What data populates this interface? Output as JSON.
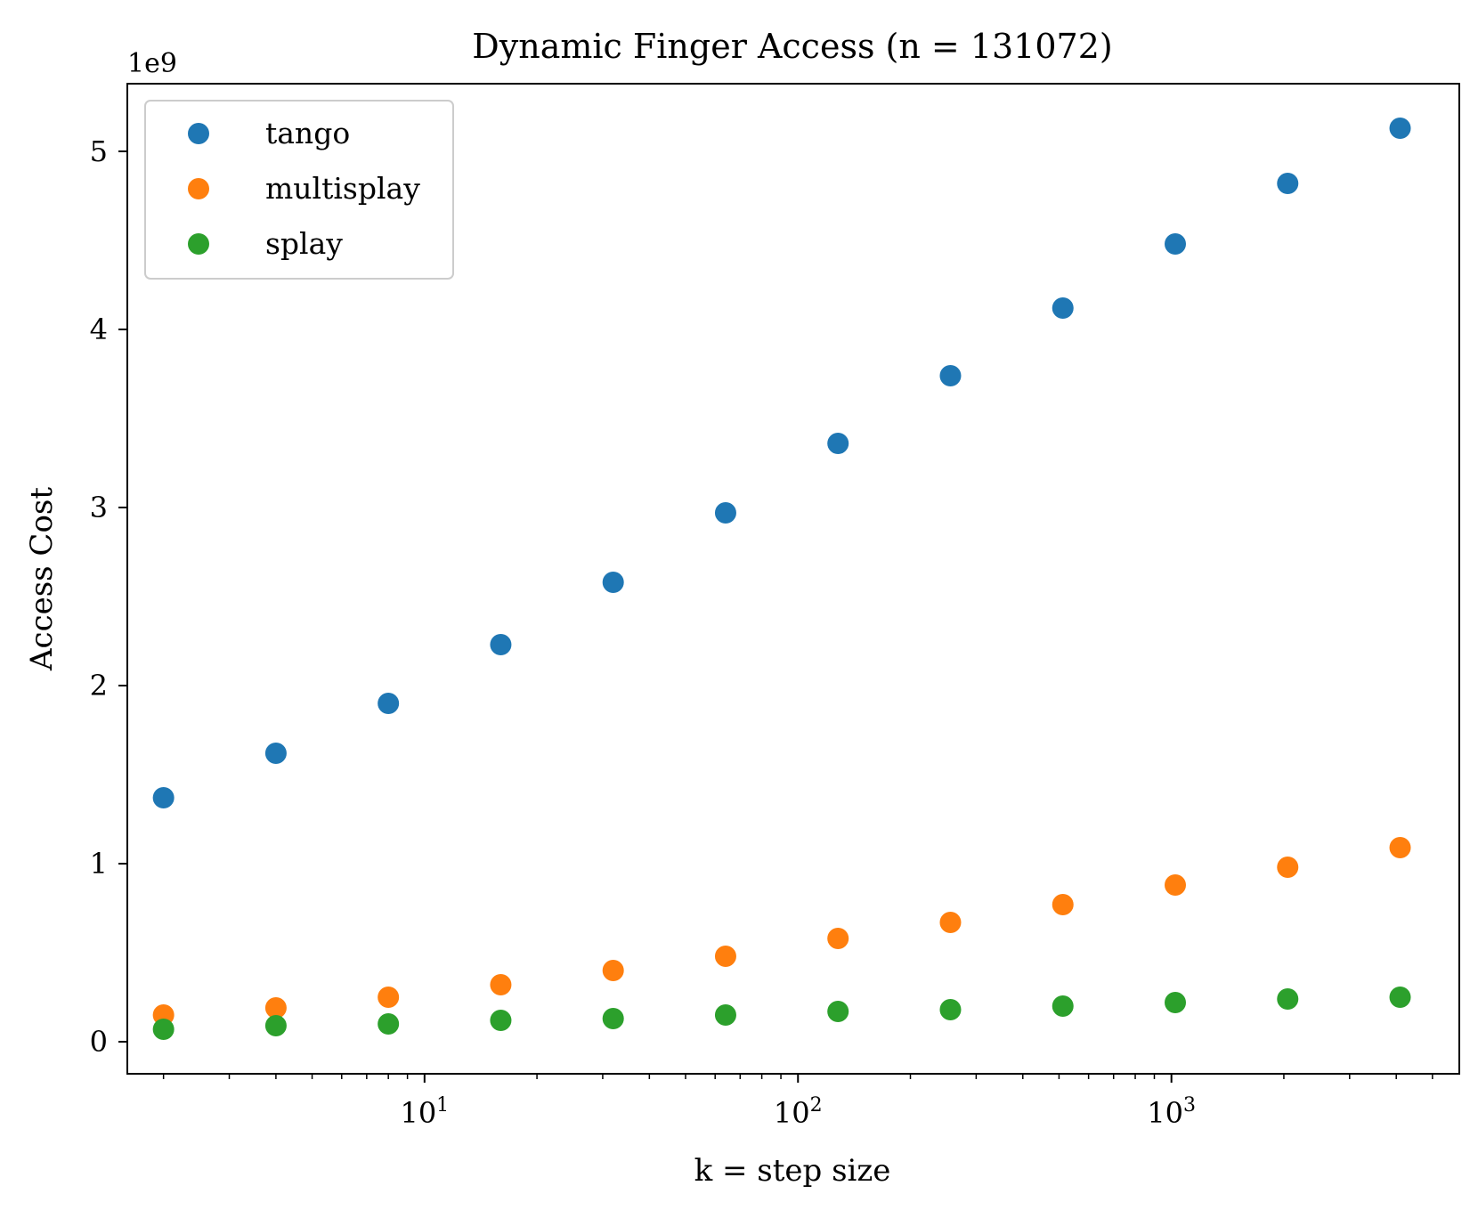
{
  "chart_data": {
    "type": "scatter",
    "title": "Dynamic Finger Access (n = 131072)",
    "xlabel": "k = step size",
    "ylabel": "Access Cost",
    "x_scale": "log",
    "xlim": [
      1.6,
      5900
    ],
    "ylim": [
      -0.18,
      5.38
    ],
    "y_offset_text": "1e9",
    "grid": false,
    "legend_position": "top-left",
    "x": [
      2,
      4,
      8,
      16,
      32,
      64,
      128,
      256,
      512,
      1024,
      2048,
      4096
    ],
    "x_ticks": [
      {
        "value": 10,
        "base": "10",
        "exp": "1"
      },
      {
        "value": 100,
        "base": "10",
        "exp": "2"
      },
      {
        "value": 1000,
        "base": "10",
        "exp": "3"
      }
    ],
    "y_ticks": [
      0,
      1,
      2,
      3,
      4,
      5
    ],
    "series": [
      {
        "name": "tango",
        "color": "#1f77b4",
        "values": [
          1.37,
          1.62,
          1.9,
          2.23,
          2.58,
          2.97,
          3.36,
          3.74,
          4.12,
          4.48,
          4.82,
          5.13
        ]
      },
      {
        "name": "multisplay",
        "color": "#ff7f0e",
        "values": [
          0.15,
          0.19,
          0.25,
          0.32,
          0.4,
          0.48,
          0.58,
          0.67,
          0.77,
          0.88,
          0.98,
          1.09
        ]
      },
      {
        "name": "splay",
        "color": "#2ca02c",
        "values": [
          0.07,
          0.09,
          0.1,
          0.12,
          0.13,
          0.15,
          0.17,
          0.18,
          0.2,
          0.22,
          0.24,
          0.25
        ]
      }
    ]
  }
}
